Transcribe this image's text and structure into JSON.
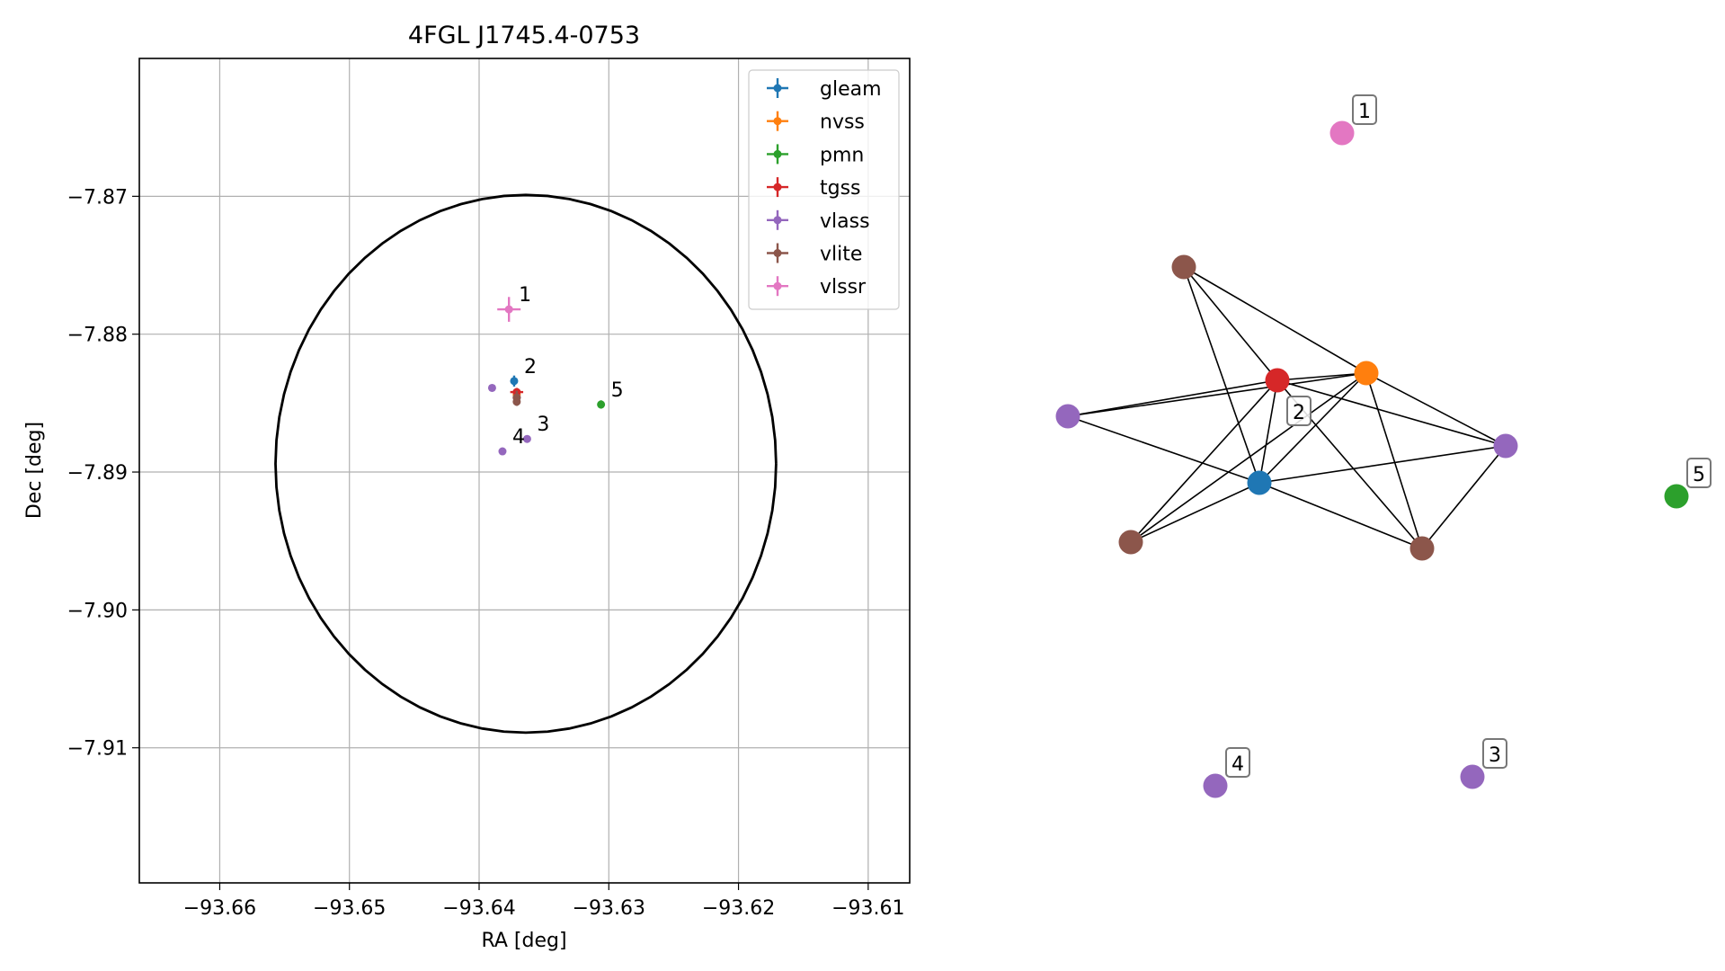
{
  "chart_data": [
    {
      "type": "scatter",
      "title": "4FGL J1745.4-0753",
      "xlabel": "RA [deg]",
      "ylabel": "Dec [deg]",
      "xlim": [
        -93.6662,
        -93.6068
      ],
      "ylim": [
        -7.9198,
        -7.86
      ],
      "x_ticks": [
        -93.66,
        -93.65,
        -93.64,
        -93.63,
        -93.62,
        -93.61
      ],
      "x_tick_labels": [
        "−93.66",
        "−93.65",
        "−93.64",
        "−93.63",
        "−93.62",
        "−93.61"
      ],
      "y_ticks": [
        -7.87,
        -7.88,
        -7.89,
        -7.9,
        -7.91
      ],
      "y_tick_labels": [
        "−7.87",
        "−7.88",
        "−7.89",
        "−7.90",
        "−7.91"
      ],
      "grid": true,
      "legend_position": "top-right",
      "circle": {
        "center": [
          -93.6364,
          -7.8894
        ],
        "radius_dec": 0.0195,
        "radius_ra": 0.0193,
        "color": "#000000"
      },
      "series": [
        {
          "name": "gleam",
          "color": "#1f77b4",
          "points": [
            {
              "x": -93.6373,
              "y": -7.8834,
              "xerr": 0.0002,
              "yerr": 0.0004
            }
          ]
        },
        {
          "name": "nvss",
          "color": "#ff7f0e",
          "points": [
            {
              "x": -93.6371,
              "y": -7.8844,
              "xerr": 0.0001,
              "yerr": 0.0002
            }
          ]
        },
        {
          "name": "pmn",
          "color": "#2ca02c",
          "points": [
            {
              "x": -93.6306,
              "y": -7.8851,
              "xerr": 0.0001,
              "yerr": 0.0003
            }
          ]
        },
        {
          "name": "tgss",
          "color": "#d62728",
          "points": [
            {
              "x": -93.6371,
              "y": -7.8842,
              "xerr": 0.0005,
              "yerr": 0.0003
            }
          ]
        },
        {
          "name": "vlass",
          "color": "#9467bd",
          "points": [
            {
              "x": -93.639,
              "y": -7.8839,
              "xerr": 0,
              "yerr": 0
            },
            {
              "x": -93.6363,
              "y": -7.8876,
              "xerr": 0,
              "yerr": 0
            },
            {
              "x": -93.6382,
              "y": -7.8885,
              "xerr": 0,
              "yerr": 0
            },
            {
              "x": -93.6371,
              "y": -7.8846,
              "xerr": 0,
              "yerr": 0
            }
          ]
        },
        {
          "name": "vlite",
          "color": "#8c564b",
          "points": [
            {
              "x": -93.6371,
              "y": -7.8846,
              "xerr": 0.0003,
              "yerr": 0.0005
            },
            {
              "x": -93.6371,
              "y": -7.8849,
              "xerr": 0.0001,
              "yerr": 0.0003
            }
          ]
        },
        {
          "name": "vlssr",
          "color": "#e377c2",
          "points": [
            {
              "x": -93.6377,
              "y": -7.8782,
              "xerr": 0.0009,
              "yerr": 0.0009
            }
          ]
        }
      ],
      "annotations": [
        {
          "text": "1",
          "x": -93.6377,
          "y": -7.8782
        },
        {
          "text": "2",
          "x": -93.6373,
          "y": -7.8834
        },
        {
          "text": "5",
          "x": -93.6306,
          "y": -7.8851
        },
        {
          "text": "3",
          "x": -93.6363,
          "y": -7.8876
        },
        {
          "text": "4",
          "x": -93.6382,
          "y": -7.8885
        }
      ]
    },
    {
      "type": "network",
      "nodes": [
        {
          "id": "A",
          "color": "#8c564b"
        },
        {
          "id": "B",
          "color": "#d62728"
        },
        {
          "id": "C",
          "color": "#ff7f0e"
        },
        {
          "id": "D",
          "color": "#9467bd"
        },
        {
          "id": "E",
          "color": "#9467bd"
        },
        {
          "id": "F",
          "color": "#1f77b4"
        },
        {
          "id": "G",
          "color": "#8c564b"
        },
        {
          "id": "H",
          "color": "#8c564b"
        },
        {
          "id": "P1",
          "color": "#e377c2",
          "label": "1"
        },
        {
          "id": "P5",
          "color": "#2ca02c",
          "label": "5"
        },
        {
          "id": "P4",
          "color": "#9467bd",
          "label": "4"
        },
        {
          "id": "P3",
          "color": "#9467bd",
          "label": "3"
        }
      ],
      "edges": [
        [
          "A",
          "B"
        ],
        [
          "A",
          "C"
        ],
        [
          "A",
          "F"
        ],
        [
          "B",
          "C"
        ],
        [
          "B",
          "D"
        ],
        [
          "B",
          "E"
        ],
        [
          "B",
          "F"
        ],
        [
          "B",
          "G"
        ],
        [
          "B",
          "H"
        ],
        [
          "C",
          "D"
        ],
        [
          "C",
          "E"
        ],
        [
          "C",
          "F"
        ],
        [
          "C",
          "G"
        ],
        [
          "C",
          "H"
        ],
        [
          "D",
          "F"
        ],
        [
          "E",
          "F"
        ],
        [
          "E",
          "H"
        ],
        [
          "F",
          "G"
        ],
        [
          "F",
          "H"
        ]
      ],
      "group_label": "2",
      "edge_color": "#000000"
    }
  ]
}
